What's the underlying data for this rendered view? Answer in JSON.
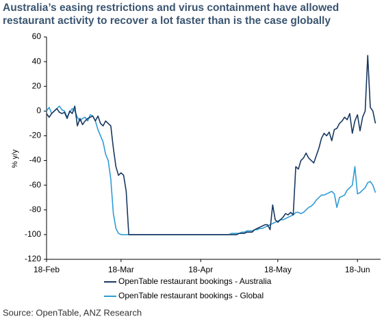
{
  "chart_data": {
    "type": "line",
    "title": [
      "Australia’s easing restrictions and virus containment have allowed",
      "restaurant activity to recover a lot faster than is the case globally"
    ],
    "y_label": "% y/y",
    "source": "Source: OpenTable, ANZ Research",
    "categories": [
      "18-Feb",
      null,
      null,
      null,
      null,
      null,
      null,
      null,
      null,
      null,
      null,
      null,
      null,
      null,
      null,
      null,
      null,
      null,
      null,
      null,
      null,
      null,
      null,
      null,
      null,
      null,
      null,
      null,
      null,
      "18-Mar",
      null,
      null,
      null,
      null,
      null,
      null,
      null,
      null,
      null,
      null,
      null,
      null,
      null,
      null,
      null,
      null,
      null,
      null,
      null,
      null,
      null,
      null,
      null,
      null,
      null,
      null,
      null,
      null,
      null,
      null,
      "18-Apr",
      null,
      null,
      null,
      null,
      null,
      null,
      null,
      null,
      null,
      null,
      null,
      null,
      null,
      null,
      null,
      null,
      null,
      null,
      null,
      null,
      null,
      null,
      null,
      null,
      null,
      null,
      null,
      null,
      null,
      "18-May",
      null,
      null,
      null,
      null,
      null,
      null,
      null,
      null,
      null,
      null,
      null,
      null,
      null,
      null,
      null,
      null,
      null,
      null,
      null,
      null,
      null,
      null,
      null,
      null,
      null,
      null,
      null,
      null,
      null,
      null,
      "18-Jun",
      null,
      null,
      null,
      null,
      null,
      null,
      null
    ],
    "series": [
      {
        "name": "OpenTable restaurant bookings - Australia",
        "color": "#17375e",
        "values": [
          -2,
          -5,
          -2,
          0,
          2,
          -1,
          -2,
          -1,
          -6,
          0,
          -2,
          4,
          -12,
          -6,
          -11,
          -8,
          -6,
          -5,
          -4,
          -8,
          -4,
          -10,
          -12,
          -8,
          -10,
          -12,
          -30,
          -45,
          -52,
          -50,
          -52,
          -65,
          -100,
          -100,
          -100,
          -100,
          -100,
          -100,
          -100,
          -100,
          -100,
          -100,
          -100,
          -100,
          -100,
          -100,
          -100,
          -100,
          -100,
          -100,
          -100,
          -100,
          -100,
          -100,
          -100,
          -100,
          -100,
          -100,
          -100,
          -100,
          -100,
          -100,
          -100,
          -100,
          -100,
          -100,
          -100,
          -100,
          -100,
          -100,
          -100,
          -100,
          -100,
          -100,
          -100,
          -99,
          -99,
          -99,
          -98,
          -98,
          -98,
          -96,
          -95,
          -94,
          -93,
          -92,
          -92,
          -96,
          -76,
          -88,
          -90,
          -88,
          -86,
          -83,
          -84,
          -82,
          -84,
          -45,
          -47,
          -40,
          -38,
          -34,
          -38,
          -40,
          -42,
          -36,
          -30,
          -22,
          -18,
          -20,
          -17,
          -24,
          -15,
          -14,
          -10,
          -8,
          -5,
          -7,
          -2,
          -18,
          -8,
          -3,
          -16,
          -5,
          0,
          45,
          3,
          0,
          -10
        ]
      },
      {
        "name": "OpenTable restaurant bookings - Global",
        "color": "#2e9bd6",
        "values": [
          0,
          3,
          -2,
          0,
          2,
          4,
          1,
          0,
          -5,
          -1,
          2,
          0,
          -5,
          -8,
          -6,
          -5,
          -8,
          -3,
          -4,
          -8,
          -15,
          -20,
          -25,
          -35,
          -40,
          -55,
          -83,
          -95,
          -99,
          -100,
          -100,
          -100,
          -100,
          -100,
          -100,
          -100,
          -100,
          -100,
          -100,
          -100,
          -100,
          -100,
          -100,
          -100,
          -100,
          -100,
          -100,
          -100,
          -100,
          -100,
          -100,
          -100,
          -100,
          -100,
          -100,
          -100,
          -100,
          -100,
          -100,
          -100,
          -100,
          -100,
          -100,
          -100,
          -100,
          -100,
          -100,
          -100,
          -100,
          -100,
          -100,
          -100,
          -99,
          -99,
          -99,
          -99,
          -98,
          -98,
          -97,
          -97,
          -97,
          -96,
          -96,
          -95,
          -95,
          -94,
          -93,
          -92,
          -91,
          -90,
          -89,
          -88,
          -88,
          -87,
          -86,
          -85,
          -84,
          -82,
          -82,
          -83,
          -82,
          -80,
          -78,
          -77,
          -75,
          -72,
          -70,
          -68,
          -68,
          -67,
          -66,
          -65,
          -67,
          -78,
          -70,
          -69,
          -68,
          -64,
          -62,
          -60,
          -45,
          -67,
          -66,
          -64,
          -62,
          -58,
          -57,
          -60,
          -66
        ]
      }
    ],
    "ylim": [
      -120,
      60
    ],
    "yticks": [
      -120,
      -100,
      -80,
      -60,
      -40,
      -20,
      0,
      20,
      40,
      60
    ]
  }
}
